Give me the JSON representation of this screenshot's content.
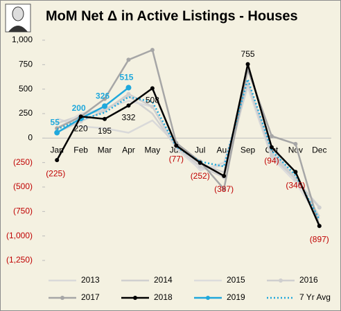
{
  "chart_data": {
    "type": "line",
    "title": "MoM Net Δ in Active Listings - Houses",
    "categories": [
      "Jan",
      "Feb",
      "Mar",
      "Apr",
      "May",
      "Jun",
      "Jul",
      "Aug",
      "Sep",
      "Oct",
      "Nov",
      "Dec"
    ],
    "ylim": [
      -1250,
      1000
    ],
    "yticks": [
      {
        "value": 1000,
        "label": "1,000"
      },
      750,
      500,
      250,
      0,
      {
        "value": -250,
        "label": "(250)"
      },
      {
        "value": -500,
        "label": "(500)"
      },
      {
        "value": -750,
        "label": "(750)"
      },
      {
        "value": -1000,
        "label": "(1,000)"
      },
      {
        "value": -1250,
        "label": "(1,250)"
      }
    ],
    "grid": false,
    "legend": "bottom",
    "series": [
      {
        "name": "2013",
        "color": "#d9d9d9",
        "marker": false,
        "values": [
          200,
          120,
          100,
          55,
          180,
          -60,
          -330,
          -250,
          550,
          -100,
          -420,
          -700
        ]
      },
      {
        "name": "2014",
        "color": "#d0d0d0",
        "marker": false,
        "values": [
          150,
          230,
          290,
          430,
          250,
          -100,
          -260,
          -350,
          570,
          -150,
          -400,
          -800
        ]
      },
      {
        "name": "2015",
        "color": "#dcdcdc",
        "marker": false,
        "values": [
          100,
          250,
          300,
          380,
          320,
          -110,
          -320,
          -280,
          520,
          -200,
          -450,
          -830
        ]
      },
      {
        "name": "2016",
        "color": "#cfcfcf",
        "marker": true,
        "values": [
          60,
          170,
          280,
          450,
          320,
          -90,
          -290,
          -400,
          560,
          -180,
          -420,
          -710
        ]
      },
      {
        "name": "2017",
        "color": "#a6a6a6",
        "marker": true,
        "values": [
          100,
          220,
          400,
          800,
          900,
          -50,
          -240,
          -520,
          700,
          20,
          -60,
          -900
        ]
      },
      {
        "name": "2018",
        "color": "#000000",
        "marker": true,
        "values": [
          -225,
          220,
          195,
          332,
          508,
          -77,
          -252,
          -387,
          755,
          -94,
          -346,
          -897
        ],
        "value_labels": [
          "(225)",
          "220",
          "195",
          "332",
          "508",
          "(77)",
          "(252)",
          "(387)",
          "755",
          "(94)",
          "(346)",
          "(897)"
        ]
      },
      {
        "name": "2019",
        "color": "#1fa8dc",
        "marker": true,
        "show_labels": true,
        "values": [
          55,
          200,
          326,
          515,
          null,
          null,
          null,
          null,
          null,
          null,
          null,
          null
        ]
      },
      {
        "name": "7 Yr Avg",
        "color": "#1fa8dc",
        "marker": false,
        "dashed": true,
        "values": [
          90,
          190,
          260,
          420,
          370,
          -90,
          -240,
          -290,
          600,
          -130,
          -380,
          -830
        ]
      }
    ]
  }
}
